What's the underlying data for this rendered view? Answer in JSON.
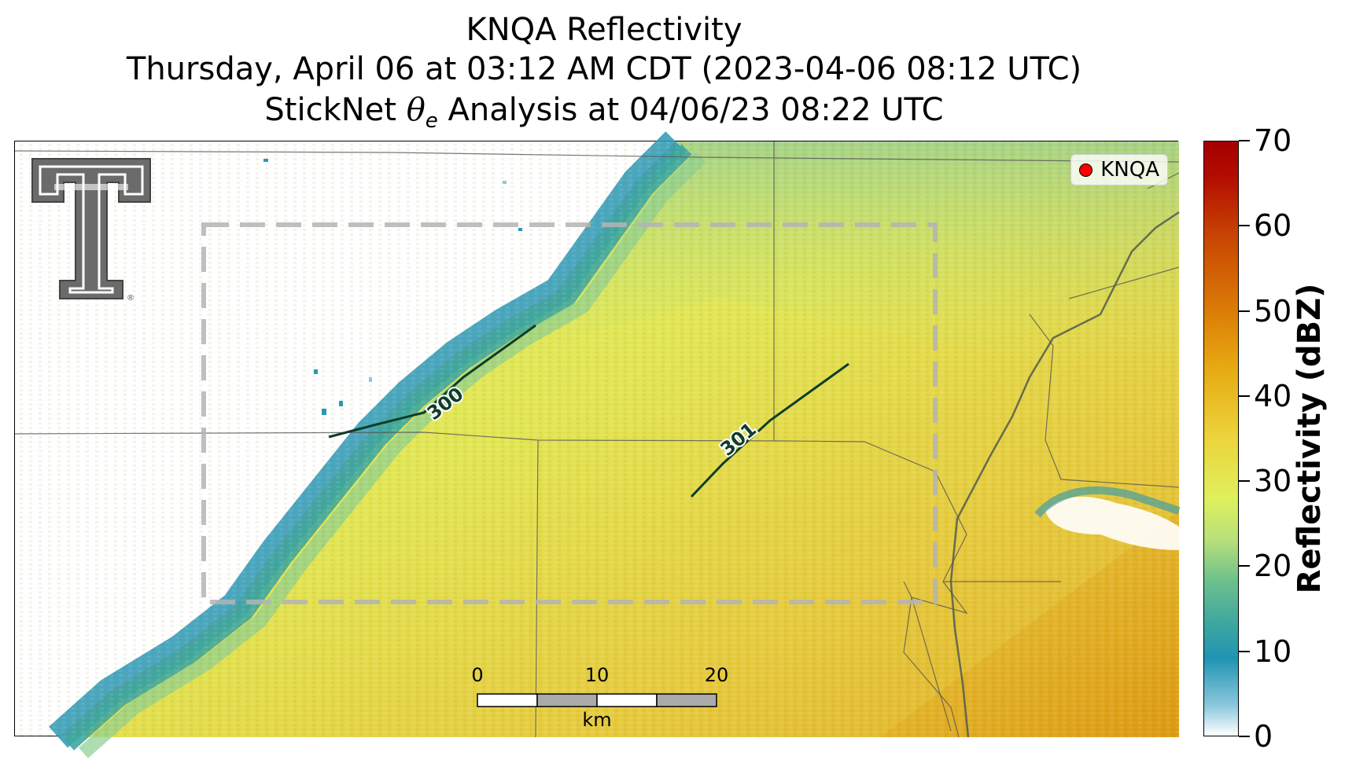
{
  "title": {
    "line1": "KNQA Reflectivity",
    "line2": "Thursday, April 06 at 03:12 AM CDT (2023-04-06 08:12 UTC)",
    "line3_prefix": "StickNet ",
    "line3_symbol": "θ",
    "line3_subscript": "e",
    "line3_suffix": " Analysis at 04/06/23 08:22 UTC"
  },
  "legend": {
    "label": "KNQA",
    "marker_color": "#ff0000"
  },
  "contours": [
    {
      "label": "300"
    },
    {
      "label": "301"
    }
  ],
  "scale_bar": {
    "ticks": [
      "0",
      "10",
      "20"
    ],
    "unit": "km"
  },
  "colorbar": {
    "label": "Reflectivity (dBZ)",
    "min": 0,
    "max": 70,
    "ticks": [
      "0",
      "10",
      "20",
      "30",
      "40",
      "50",
      "60",
      "70"
    ]
  },
  "logo": {
    "name": "Double T",
    "mark": "®"
  },
  "colors": {
    "contour": "#0f3d2a",
    "analysis_box": "#b4b4b4",
    "river": "#505a50"
  },
  "icons": [
    "logo-icon",
    "radar-site-icon"
  ]
}
